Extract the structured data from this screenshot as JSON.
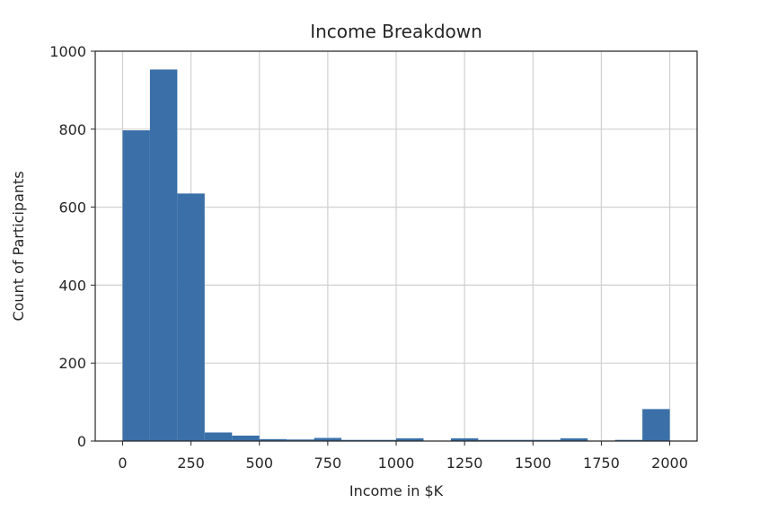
{
  "chart_data": {
    "type": "bar",
    "title": "Income Breakdown",
    "xlabel": "Income in $K",
    "ylabel": "Count of Participants",
    "xlim": [
      -100,
      2100
    ],
    "ylim": [
      0,
      1000
    ],
    "xticks": [
      0,
      250,
      500,
      750,
      1000,
      1250,
      1500,
      1750,
      2000
    ],
    "yticks": [
      0,
      200,
      400,
      600,
      800,
      1000
    ],
    "grid": true,
    "bins": [
      {
        "x0": 0,
        "x1": 100,
        "value": 797
      },
      {
        "x0": 100,
        "x1": 200,
        "value": 953
      },
      {
        "x0": 200,
        "x1": 300,
        "value": 635
      },
      {
        "x0": 300,
        "x1": 400,
        "value": 22
      },
      {
        "x0": 400,
        "x1": 500,
        "value": 14
      },
      {
        "x0": 500,
        "x1": 600,
        "value": 5
      },
      {
        "x0": 600,
        "x1": 700,
        "value": 4
      },
      {
        "x0": 700,
        "x1": 800,
        "value": 8
      },
      {
        "x0": 800,
        "x1": 900,
        "value": 3
      },
      {
        "x0": 900,
        "x1": 1000,
        "value": 3
      },
      {
        "x0": 1000,
        "x1": 1100,
        "value": 7
      },
      {
        "x0": 1100,
        "x1": 1200,
        "value": 0
      },
      {
        "x0": 1200,
        "x1": 1300,
        "value": 7
      },
      {
        "x0": 1300,
        "x1": 1400,
        "value": 3
      },
      {
        "x0": 1400,
        "x1": 1500,
        "value": 3
      },
      {
        "x0": 1500,
        "x1": 1600,
        "value": 3
      },
      {
        "x0": 1600,
        "x1": 1700,
        "value": 7
      },
      {
        "x0": 1700,
        "x1": 1800,
        "value": 0
      },
      {
        "x0": 1800,
        "x1": 1900,
        "value": 3
      },
      {
        "x0": 1900,
        "x1": 2000,
        "value": 82
      }
    ],
    "bar_color": "#3a6fa8"
  }
}
